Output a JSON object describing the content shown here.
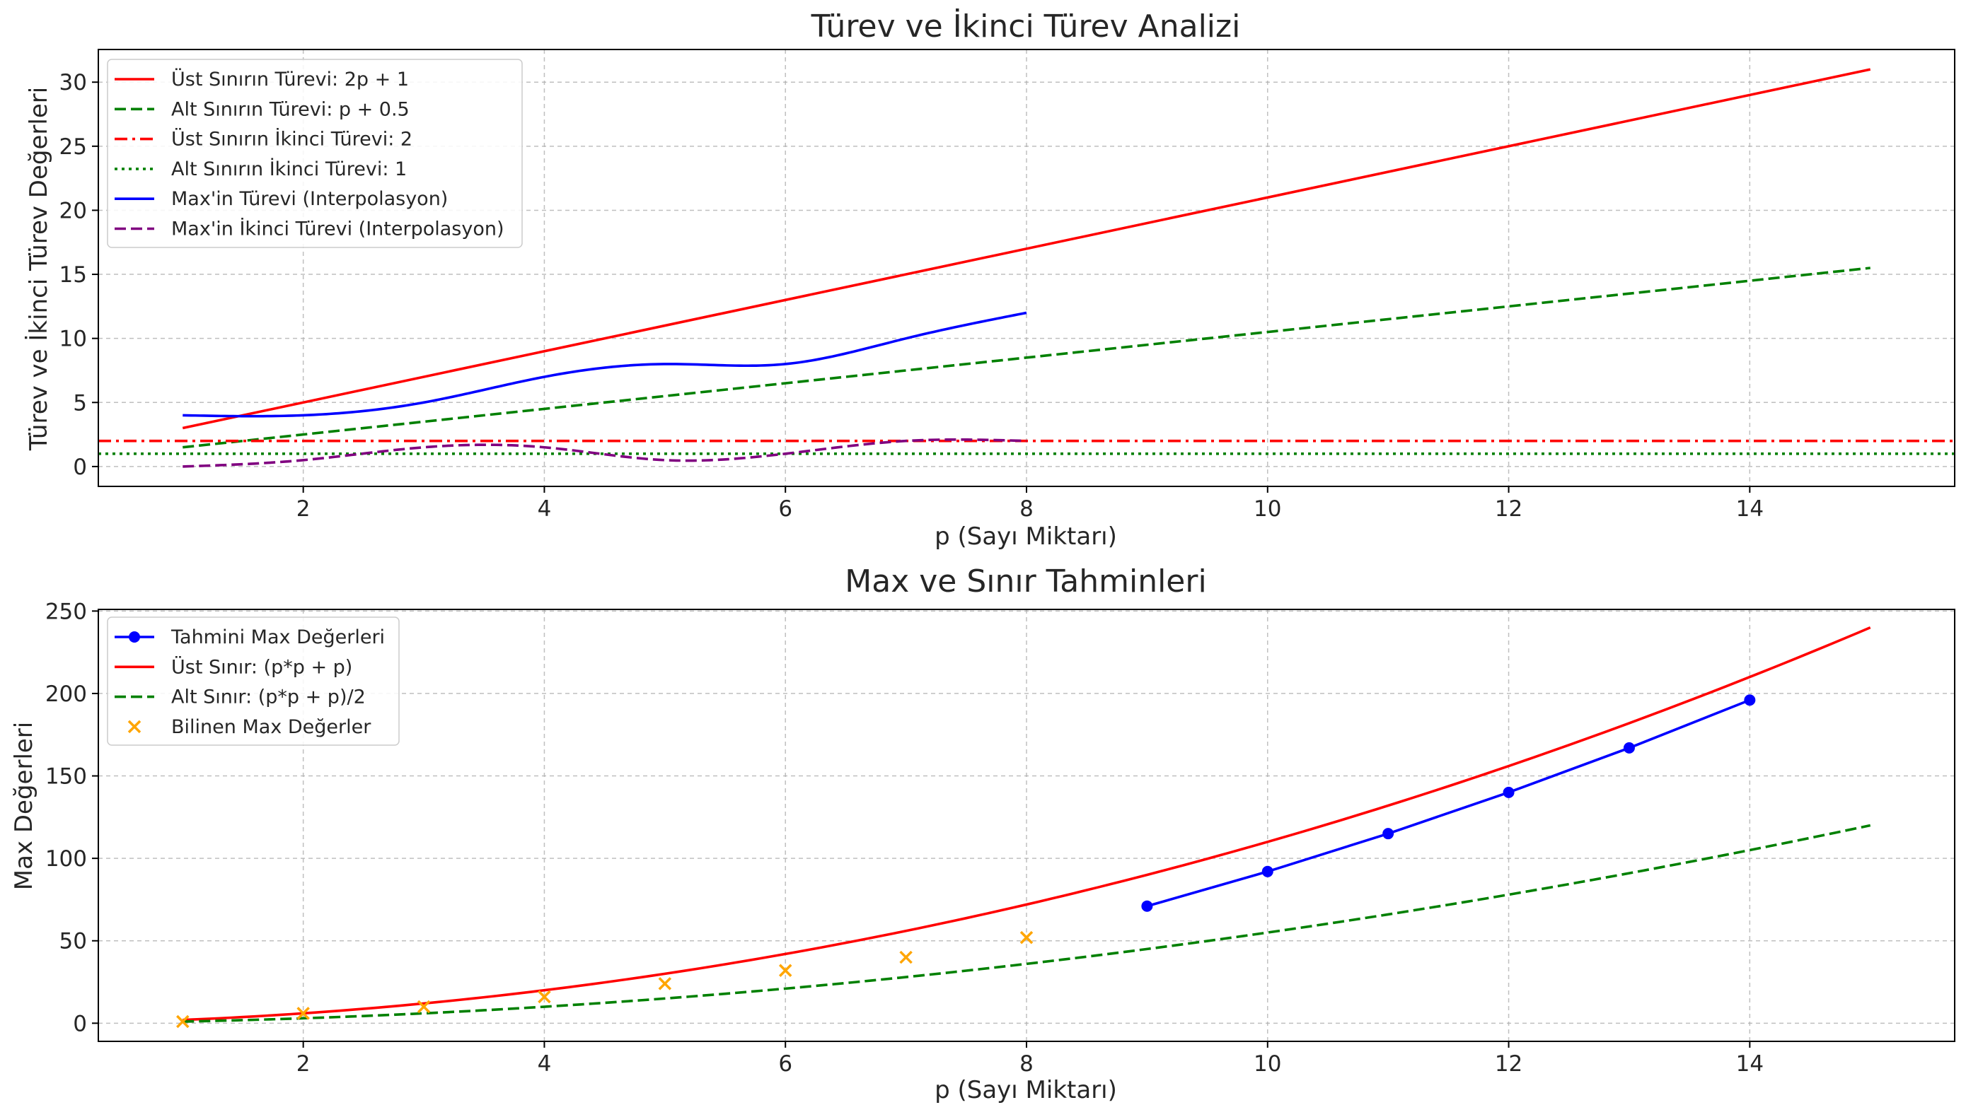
{
  "chart_data": [
    {
      "type": "line",
      "title": "Türev ve İkinci Türev Analizi",
      "xlabel": "p (Sayı Miktarı)",
      "ylabel": "Türev ve İkinci Türev Değerleri",
      "xlim": [
        0.3,
        15.7
      ],
      "ylim": [
        -1.55,
        32.55
      ],
      "xticks": [
        2,
        4,
        6,
        8,
        10,
        12,
        14
      ],
      "yticks": [
        0,
        5,
        10,
        15,
        20,
        25,
        30
      ],
      "grid": true,
      "legend": "top-left",
      "series": [
        {
          "name": "Üst Sınırın Türevi: 2p + 1",
          "color": "#ff0000",
          "dash": "solid",
          "x": [
            1,
            15
          ],
          "y": [
            3,
            31
          ]
        },
        {
          "name": "Alt Sınırın Türevi: p + 0.5",
          "color": "#008000",
          "dash": "dashed",
          "x": [
            1,
            15
          ],
          "y": [
            1.5,
            15.5
          ]
        },
        {
          "name": "Üst Sınırın İkinci Türevi: 2",
          "color": "#ff0000",
          "dash": "dashdot",
          "x": [
            0.3,
            15.7
          ],
          "y": [
            2,
            2
          ]
        },
        {
          "name": "Alt Sınırın İkinci Türevi: 1",
          "color": "#008000",
          "dash": "dotted",
          "x": [
            0.3,
            15.7
          ],
          "y": [
            1,
            1
          ]
        },
        {
          "name": "Max'in Türevi (Interpolasyon)",
          "color": "#0000ff",
          "dash": "solid",
          "smooth": true,
          "x": [
            1,
            2,
            3,
            4,
            5,
            6,
            7,
            8
          ],
          "y": [
            4,
            4,
            5,
            7,
            8,
            8,
            10,
            12
          ]
        },
        {
          "name": "Max'in İkinci Türevi (Interpolasyon)",
          "color": "#800080",
          "dash": "dashed",
          "smooth": true,
          "x": [
            1,
            2,
            3,
            4,
            5,
            6,
            7,
            8
          ],
          "y": [
            0,
            0.5,
            1.5,
            1.5,
            0.5,
            1,
            2,
            2
          ]
        }
      ]
    },
    {
      "type": "line",
      "title": "Max ve Sınır Tahminleri",
      "xlabel": "p (Sayı Miktarı)",
      "ylabel": "Max Değerleri",
      "xlim": [
        0.3,
        15.7
      ],
      "ylim": [
        -11,
        251
      ],
      "xticks": [
        2,
        4,
        6,
        8,
        10,
        12,
        14
      ],
      "yticks": [
        0,
        50,
        100,
        150,
        200,
        250
      ],
      "grid": true,
      "legend": "top-left",
      "series": [
        {
          "name": "Tahmini Max Değerleri",
          "color": "#0000ff",
          "dash": "solid",
          "marker": "circle",
          "x": [
            9,
            10,
            11,
            12,
            13,
            14
          ],
          "y": [
            71,
            92,
            115,
            140,
            167,
            196
          ]
        },
        {
          "name": "Üst Sınır: (p*p + p)",
          "color": "#ff0000",
          "dash": "solid",
          "formula": "upper",
          "x": [
            1,
            15
          ],
          "y": [
            2,
            240
          ]
        },
        {
          "name": "Alt Sınır: (p*p + p)/2",
          "color": "#008000",
          "dash": "dashed",
          "formula": "lower",
          "x": [
            1,
            15
          ],
          "y": [
            1,
            120
          ]
        },
        {
          "name": "Bilinen Max Değerler",
          "color": "#ffa500",
          "dash": "none",
          "marker": "x",
          "x": [
            1,
            2,
            3,
            4,
            5,
            6,
            7,
            8
          ],
          "y": [
            1,
            6,
            10,
            16,
            24,
            32,
            40,
            52
          ]
        }
      ]
    }
  ]
}
